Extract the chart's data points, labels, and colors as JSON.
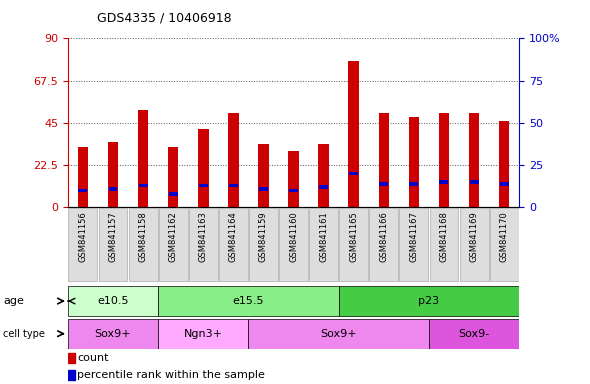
{
  "title": "GDS4335 / 10406918",
  "samples": [
    "GSM841156",
    "GSM841157",
    "GSM841158",
    "GSM841162",
    "GSM841163",
    "GSM841164",
    "GSM841159",
    "GSM841160",
    "GSM841161",
    "GSM841165",
    "GSM841166",
    "GSM841167",
    "GSM841168",
    "GSM841169",
    "GSM841170"
  ],
  "counts": [
    32,
    35,
    52,
    32,
    42,
    50,
    34,
    30,
    34,
    78,
    50,
    48,
    50,
    50,
    46
  ],
  "percentile_ranks": [
    10,
    11,
    13,
    8,
    13,
    13,
    11,
    10,
    12,
    20,
    14,
    14,
    15,
    15,
    14
  ],
  "left_ylim": [
    0,
    90
  ],
  "right_ylim": [
    0,
    100
  ],
  "left_yticks": [
    0,
    22.5,
    45,
    67.5,
    90
  ],
  "right_yticks": [
    0,
    25,
    50,
    75,
    100
  ],
  "left_ytick_labels": [
    "0",
    "22.5",
    "45",
    "67.5",
    "90"
  ],
  "right_ytick_labels": [
    "0",
    "25",
    "50",
    "75",
    "100%"
  ],
  "bar_color": "#cc0000",
  "percentile_color": "#0000cc",
  "bar_width": 0.35,
  "age_groups": [
    {
      "label": "e10.5",
      "start": 0,
      "end": 3,
      "color": "#ccffcc"
    },
    {
      "label": "e15.5",
      "start": 3,
      "end": 9,
      "color": "#88ee88"
    },
    {
      "label": "p23",
      "start": 9,
      "end": 15,
      "color": "#44cc44"
    }
  ],
  "cell_type_groups": [
    {
      "label": "Sox9+",
      "start": 0,
      "end": 3,
      "color": "#ee88ee"
    },
    {
      "label": "Ngn3+",
      "start": 3,
      "end": 6,
      "color": "#ffaaff"
    },
    {
      "label": "Sox9+",
      "start": 6,
      "end": 12,
      "color": "#ee88ee"
    },
    {
      "label": "Sox9-",
      "start": 12,
      "end": 15,
      "color": "#dd55dd"
    }
  ],
  "grid_color": "#555555",
  "background_color": "#ffffff",
  "plot_bg": "#ffffff",
  "legend_count_label": "count",
  "legend_pct_label": "percentile rank within the sample",
  "left_axis_color": "#cc0000",
  "right_axis_color": "#0000cc",
  "tick_label_bg": "#dddddd"
}
